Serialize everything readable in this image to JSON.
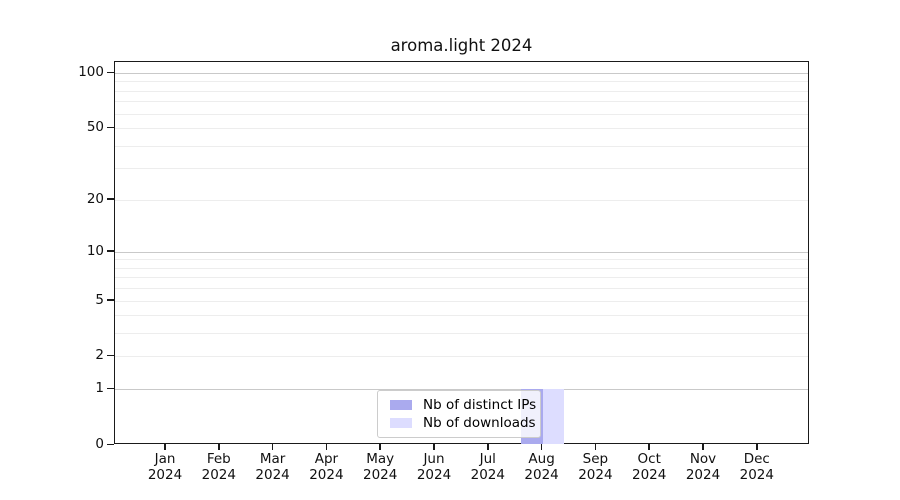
{
  "chart_data": {
    "type": "bar",
    "title": "aroma.light 2024",
    "year_label": "2024",
    "months": [
      "Jan",
      "Feb",
      "Mar",
      "Apr",
      "May",
      "Jun",
      "Jul",
      "Aug",
      "Sep",
      "Oct",
      "Nov",
      "Dec"
    ],
    "series": [
      {
        "name": "Nb of distinct IPs",
        "color": "#aaaaee",
        "values": [
          0,
          0,
          0,
          0,
          0,
          0,
          0,
          1,
          0,
          0,
          0,
          0
        ]
      },
      {
        "name": "Nb of downloads",
        "color": "#ddddff",
        "values": [
          0,
          0,
          0,
          0,
          0,
          0,
          0,
          1,
          0,
          0,
          0,
          0
        ]
      }
    ],
    "y_axis": {
      "ticks": [
        0,
        1,
        2,
        5,
        10,
        20,
        50,
        100
      ],
      "scale": "log10(1+y)",
      "ylim": [
        0,
        100
      ]
    },
    "grid": {
      "major_values": [
        1,
        10,
        100
      ],
      "minor_values": [
        2,
        3,
        4,
        5,
        6,
        7,
        8,
        9,
        20,
        30,
        40,
        50,
        60,
        70,
        80,
        90
      ],
      "major_color": "#c9c9c9",
      "minor_color": "#ededed"
    },
    "legend": {
      "position": "lower center"
    }
  }
}
